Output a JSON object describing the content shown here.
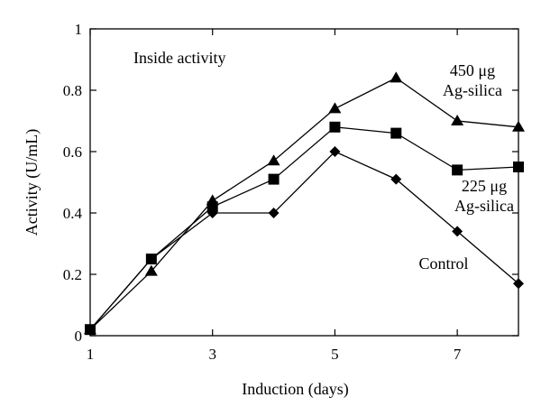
{
  "chart_data": {
    "type": "line",
    "title": "",
    "xlabel": "Induction (days)",
    "ylabel": "Activity (U/mL)",
    "xlim": [
      1,
      8
    ],
    "ylim": [
      0,
      1
    ],
    "x_ticks": [
      1,
      3,
      5,
      7
    ],
    "x_tick_labels": [
      "1",
      "3",
      "5",
      "7"
    ],
    "y_ticks": [
      0,
      0.2,
      0.4,
      0.6,
      0.8,
      1
    ],
    "y_tick_labels": [
      "0",
      "0.2",
      "0.4",
      "0.6",
      "0.8",
      "1"
    ],
    "grid": false,
    "annotations": [
      {
        "id": "inside-activity",
        "lines": [
          "Inside activity"
        ]
      },
      {
        "id": "label-450",
        "lines": [
          "450 μg",
          "Ag-silica"
        ]
      },
      {
        "id": "label-225",
        "lines": [
          "225 μg",
          "Ag-silica"
        ]
      },
      {
        "id": "label-control",
        "lines": [
          "Control"
        ]
      }
    ],
    "series": [
      {
        "marker": "triangle",
        "color": "#000000",
        "x": [
          1,
          2,
          3,
          4,
          5,
          6,
          7,
          8
        ],
        "y": [
          0.02,
          0.21,
          0.44,
          0.57,
          0.74,
          0.84,
          0.7,
          0.68
        ]
      },
      {
        "marker": "square",
        "color": "#000000",
        "x": [
          1,
          2,
          3,
          4,
          5,
          6,
          7,
          8
        ],
        "y": [
          0.02,
          0.25,
          0.42,
          0.51,
          0.68,
          0.66,
          0.54,
          0.55
        ]
      },
      {
        "marker": "diamond",
        "color": "#000000",
        "x": [
          1,
          2,
          3,
          4,
          5,
          6,
          7,
          8
        ],
        "y": [
          0.02,
          0.25,
          0.4,
          0.4,
          0.6,
          0.51,
          0.34,
          0.17
        ]
      }
    ]
  }
}
